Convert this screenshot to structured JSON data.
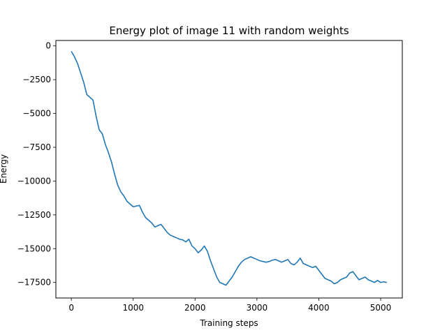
{
  "chart_data": {
    "type": "line",
    "title": "Energy plot of image 11 with random weights",
    "xlabel": "Training steps",
    "ylabel": "Energy",
    "xlim": [
      -250,
      5350
    ],
    "ylim": [
      -18650,
      400
    ],
    "x_ticks": [
      0,
      1000,
      2000,
      3000,
      4000,
      5000
    ],
    "x_tick_labels": [
      "0",
      "1000",
      "2000",
      "3000",
      "4000",
      "5000"
    ],
    "y_ticks": [
      0,
      -2500,
      -5000,
      -7500,
      -10000,
      -12500,
      -15000,
      -17500
    ],
    "y_tick_labels": [
      "0",
      "−2500",
      "−5000",
      "−7500",
      "−10000",
      "−12500",
      "−15000",
      "−17500"
    ],
    "grid": false,
    "series_color": "#1f77b4",
    "series": [
      {
        "x": [
          0,
          50,
          100,
          150,
          200,
          250,
          300,
          350,
          400,
          450,
          500,
          550,
          600,
          650,
          700,
          750,
          800,
          850,
          900,
          950,
          1000,
          1050,
          1100,
          1150,
          1200,
          1250,
          1300,
          1350,
          1400,
          1450,
          1500,
          1550,
          1600,
          1650,
          1700,
          1750,
          1800,
          1850,
          1900,
          1950,
          2000,
          2050,
          2100,
          2150,
          2200,
          2250,
          2300,
          2350,
          2400,
          2450,
          2500,
          2550,
          2600,
          2650,
          2700,
          2750,
          2800,
          2850,
          2900,
          2950,
          3000,
          3050,
          3100,
          3150,
          3200,
          3250,
          3300,
          3350,
          3400,
          3450,
          3500,
          3550,
          3600,
          3650,
          3700,
          3750,
          3800,
          3850,
          3900,
          3950,
          4000,
          4050,
          4100,
          4150,
          4200,
          4250,
          4300,
          4350,
          4400,
          4450,
          4500,
          4550,
          4600,
          4650,
          4700,
          4750,
          4800,
          4850,
          4900,
          4950,
          5000,
          5050,
          5100
        ],
        "values": [
          -400,
          -800,
          -1300,
          -2000,
          -2700,
          -3600,
          -3800,
          -4000,
          -5200,
          -6200,
          -6500,
          -7300,
          -7900,
          -8600,
          -9500,
          -10300,
          -10800,
          -11100,
          -11500,
          -11700,
          -11900,
          -11850,
          -11800,
          -12300,
          -12700,
          -12900,
          -13100,
          -13400,
          -13300,
          -13200,
          -13500,
          -13800,
          -14000,
          -14100,
          -14200,
          -14300,
          -14350,
          -14500,
          -14300,
          -14800,
          -15000,
          -15300,
          -15100,
          -14800,
          -15200,
          -15900,
          -16500,
          -17100,
          -17500,
          -17600,
          -17700,
          -17400,
          -17100,
          -16700,
          -16300,
          -16000,
          -15800,
          -15700,
          -15600,
          -15700,
          -15800,
          -15900,
          -15950,
          -16000,
          -15950,
          -15850,
          -15800,
          -15900,
          -16000,
          -15900,
          -15800,
          -16100,
          -16200,
          -16000,
          -15700,
          -16100,
          -16200,
          -16300,
          -16400,
          -16300,
          -16600,
          -16900,
          -17200,
          -17300,
          -17400,
          -17600,
          -17500,
          -17300,
          -17200,
          -17100,
          -16800,
          -16700,
          -17000,
          -17300,
          -17200,
          -17100,
          -17300,
          -17400,
          -17500,
          -17350,
          -17500,
          -17450,
          -17500
        ]
      }
    ]
  }
}
